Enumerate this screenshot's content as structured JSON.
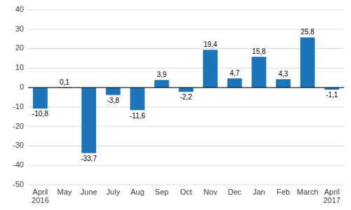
{
  "chart_data": {
    "type": "bar",
    "categories": [
      "April\n2016",
      "May",
      "June",
      "July",
      "Aug",
      "Sep",
      "Oct",
      "Nov",
      "Dec",
      "Jan",
      "Feb",
      "March",
      "April\n2017"
    ],
    "values": [
      -10.8,
      0.1,
      -33.7,
      -3.8,
      -11.6,
      3.9,
      -2.2,
      19.4,
      4.7,
      15.8,
      4.3,
      25.8,
      -1.1
    ],
    "value_labels": [
      "-10,8",
      "0,1",
      "-33,7",
      "-3,8",
      "-11,6",
      "3,9",
      "-2,2",
      "19,4",
      "4,7",
      "15,8",
      "4,3",
      "25,8",
      "-1,1"
    ],
    "data_labels": true,
    "color": "#1b75bb",
    "ylim": [
      -50,
      40
    ],
    "yticks": [
      -50,
      -40,
      -30,
      -20,
      -10,
      0,
      10,
      20,
      30,
      40
    ],
    "grid": true
  }
}
